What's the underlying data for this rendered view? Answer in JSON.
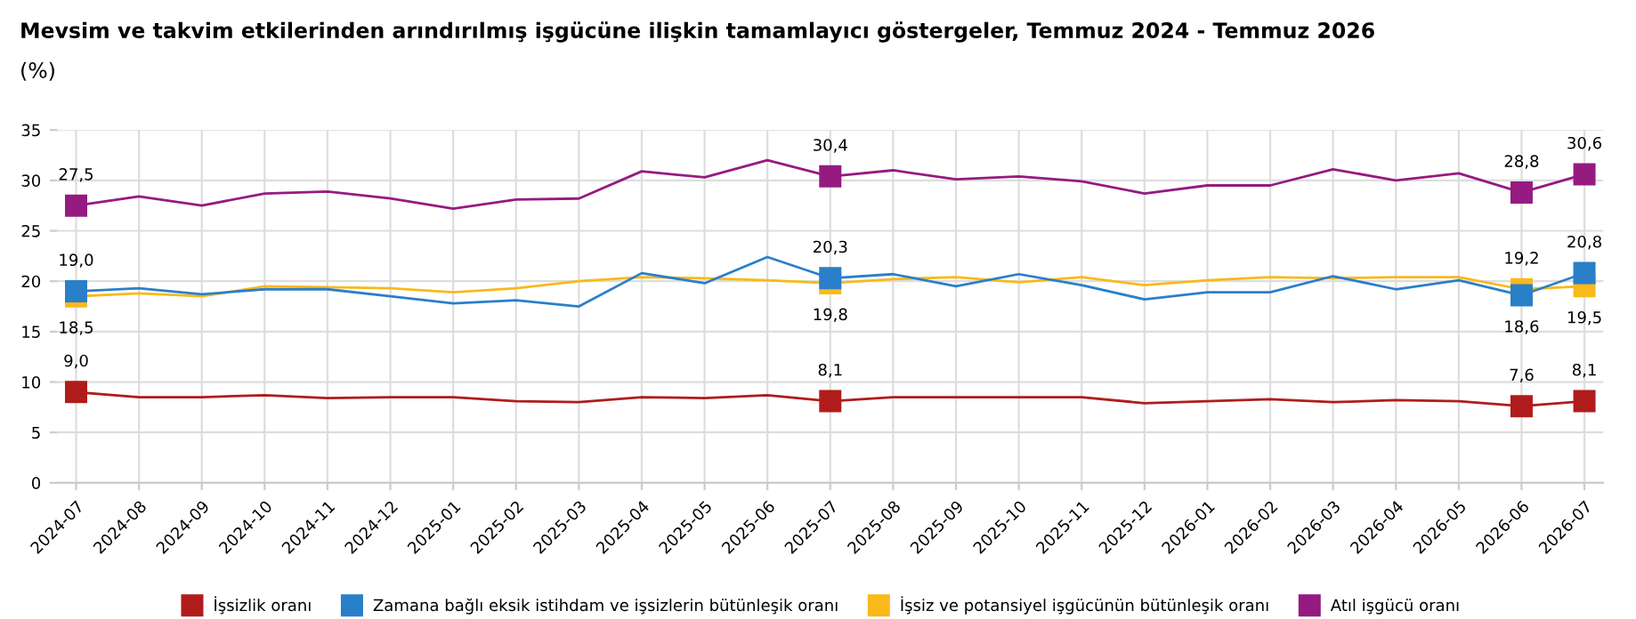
{
  "chart_data": {
    "type": "line",
    "title": "Mevsim ve takvim etkilerinden arındırılmış işgücüne ilişkin tamamlayıcı göstergeler, Temmuz 2024 - Temmuz 2026",
    "subtitle": "(%)",
    "categories": [
      "2024-07",
      "2024-08",
      "2024-09",
      "2024-10",
      "2024-11",
      "2024-12",
      "2025-01",
      "2025-02",
      "2025-03",
      "2025-04",
      "2025-05",
      "2025-06",
      "2025-07",
      "2025-08",
      "2025-09",
      "2025-10",
      "2025-11",
      "2025-12",
      "2026-01",
      "2026-02",
      "2026-03",
      "2026-04",
      "2026-05",
      "2026-06",
      "2026-07"
    ],
    "series": [
      {
        "name": "İşsizlik oranı",
        "color": "#b01c1c",
        "values": [
          9.0,
          8.5,
          8.5,
          8.7,
          8.4,
          8.5,
          8.5,
          8.1,
          8.0,
          8.5,
          8.4,
          8.7,
          8.1,
          8.5,
          8.5,
          8.5,
          8.5,
          7.9,
          8.1,
          8.3,
          8.0,
          8.2,
          8.1,
          7.6,
          8.1
        ],
        "value_labels": [
          "9,0",
          null,
          null,
          null,
          null,
          null,
          null,
          null,
          null,
          null,
          null,
          null,
          "8,1",
          null,
          null,
          null,
          null,
          null,
          null,
          null,
          null,
          null,
          null,
          "7,6",
          "8,1"
        ]
      },
      {
        "name": "Zamana bağlı eksik istihdam ve işsizlerin bütünleşik oranı",
        "color": "#2a7fc9",
        "values": [
          19.0,
          19.3,
          18.7,
          19.2,
          19.2,
          18.5,
          17.8,
          18.1,
          17.5,
          20.8,
          19.8,
          22.4,
          20.3,
          20.7,
          19.5,
          20.7,
          19.6,
          18.2,
          18.9,
          18.9,
          20.5,
          19.2,
          20.1,
          18.6,
          20.8
        ],
        "value_labels": [
          "19,0",
          null,
          null,
          null,
          null,
          null,
          null,
          null,
          null,
          null,
          null,
          null,
          "20,3",
          null,
          null,
          null,
          null,
          null,
          null,
          null,
          null,
          null,
          null,
          "18,6",
          "20,8"
        ]
      },
      {
        "name": "İşsiz ve potansiyel işgücünün bütünleşik oranı",
        "color": "#f9b91b",
        "values": [
          18.5,
          18.8,
          18.5,
          19.5,
          19.4,
          19.3,
          18.9,
          19.3,
          20.0,
          20.4,
          20.3,
          20.1,
          19.8,
          20.2,
          20.4,
          19.9,
          20.4,
          19.6,
          20.1,
          20.4,
          20.3,
          20.4,
          20.4,
          19.2,
          19.5
        ],
        "value_labels": [
          "18,5",
          null,
          null,
          null,
          null,
          null,
          null,
          null,
          null,
          null,
          null,
          null,
          "19,8",
          null,
          null,
          null,
          null,
          null,
          null,
          null,
          null,
          null,
          null,
          "19,2",
          "19,5"
        ]
      },
      {
        "name": "Atıl işgücü oranı",
        "color": "#951b81",
        "values": [
          27.5,
          28.4,
          27.5,
          28.7,
          28.9,
          28.2,
          27.2,
          28.1,
          28.2,
          30.9,
          30.3,
          32.0,
          30.4,
          31.0,
          30.1,
          30.4,
          29.9,
          28.7,
          29.5,
          29.5,
          31.1,
          30.0,
          30.7,
          28.8,
          30.6
        ],
        "value_labels": [
          "27,5",
          null,
          null,
          null,
          null,
          null,
          null,
          null,
          null,
          null,
          null,
          null,
          "30,4",
          null,
          null,
          null,
          null,
          null,
          null,
          null,
          null,
          null,
          null,
          "28,8",
          "30,6"
        ]
      }
    ],
    "ylim": [
      0,
      35
    ],
    "yticks": [
      0,
      5,
      10,
      15,
      20,
      25,
      30,
      35
    ],
    "grid": true,
    "legend": "bottom",
    "line_style": "solid"
  }
}
